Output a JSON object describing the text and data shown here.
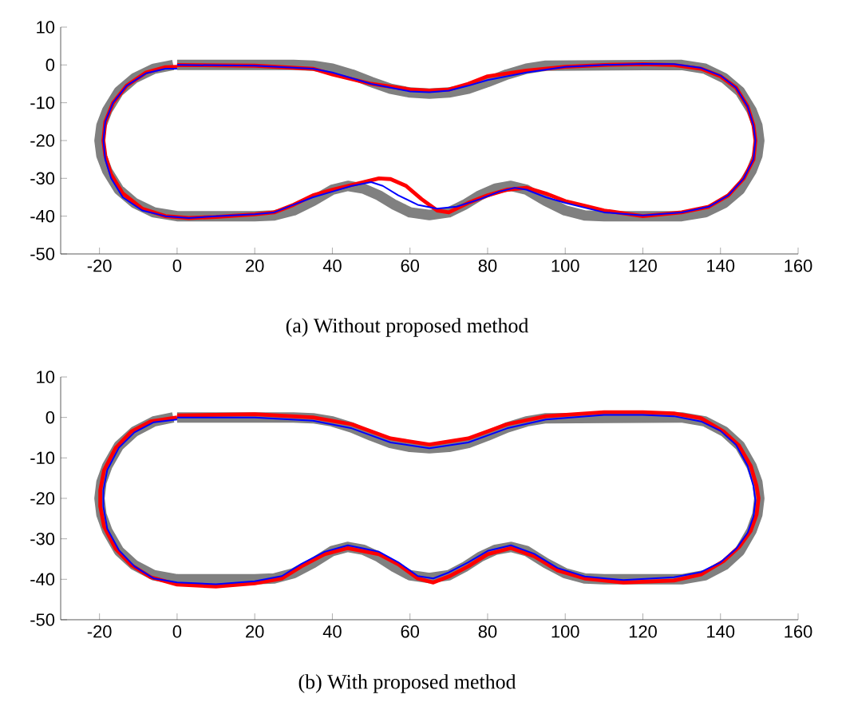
{
  "chart_data": [
    {
      "type": "line",
      "title": "(a) Without proposed method",
      "xlim": [
        -30,
        160
      ],
      "ylim": [
        -50,
        10
      ],
      "xticks": [
        -20,
        0,
        20,
        40,
        60,
        80,
        100,
        120,
        140,
        160
      ],
      "yticks": [
        -50,
        -40,
        -30,
        -20,
        -10,
        0,
        10
      ],
      "line_style": "solid",
      "series": [
        {
          "color": "#808080",
          "x": [
            0,
            30,
            35,
            40,
            45,
            50,
            55,
            60,
            65,
            70,
            75,
            80,
            85,
            90,
            95,
            130,
            136,
            141,
            145,
            148,
            149.5,
            150,
            149.5,
            148,
            145,
            141,
            136,
            130,
            120,
            110,
            105,
            100,
            95,
            90,
            86,
            82,
            78,
            74,
            70,
            65,
            60,
            56,
            52,
            48,
            44,
            40,
            35,
            30,
            25,
            20,
            10,
            0,
            -6,
            -11,
            -15,
            -18,
            -19.5,
            -20,
            -19.5,
            -18,
            -15,
            -11,
            -6,
            -1
          ],
          "values": [
            0,
            0,
            -0.2,
            -1,
            -2.5,
            -4.5,
            -6.3,
            -7.3,
            -7.6,
            -7.3,
            -6.3,
            -4.5,
            -2.5,
            -1,
            -0.2,
            0,
            -1,
            -3.5,
            -7,
            -12,
            -16,
            -20,
            -24,
            -28,
            -33,
            -36.5,
            -39,
            -40,
            -40,
            -40,
            -39.8,
            -38.5,
            -36,
            -33,
            -32,
            -32.7,
            -34.5,
            -37,
            -39,
            -39.7,
            -39,
            -37,
            -34.5,
            -32.7,
            -32,
            -33,
            -36,
            -38.5,
            -39.8,
            -40,
            -40,
            -40,
            -39,
            -36.5,
            -33,
            -28,
            -24,
            -20,
            -16,
            -12,
            -7,
            -3.5,
            -1,
            0
          ]
        },
        {
          "color": "#ff0000",
          "x": [
            0,
            20,
            35,
            40,
            50,
            60,
            65,
            70,
            75,
            80,
            90,
            100,
            110,
            120,
            128,
            135,
            140,
            144,
            147,
            148.5,
            149,
            148.5,
            146,
            142,
            137,
            130,
            120,
            110,
            100,
            95,
            90,
            85,
            80,
            75,
            70,
            67,
            63,
            59,
            55,
            52,
            48,
            44,
            40,
            35,
            30,
            25,
            20,
            10,
            3,
            -3,
            -9,
            -14,
            -17,
            -18.5,
            -19,
            -18.5,
            -16.5,
            -13,
            -8,
            -3,
            0
          ],
          "values": [
            0,
            -0.2,
            -1,
            -2.5,
            -5,
            -6.5,
            -6.8,
            -6.5,
            -5,
            -3,
            -1.5,
            -0.5,
            0,
            0.2,
            0,
            -1,
            -3,
            -6,
            -11,
            -16,
            -20,
            -25,
            -30,
            -34.5,
            -37.5,
            -39,
            -40,
            -38.5,
            -36,
            -34,
            -32.5,
            -33,
            -34.5,
            -36.5,
            -39,
            -38.5,
            -35.5,
            -32,
            -30.2,
            -30,
            -31,
            -32,
            -33,
            -34.5,
            -37,
            -39,
            -39.5,
            -40.2,
            -40.5,
            -40,
            -38,
            -34,
            -29,
            -24,
            -20,
            -15,
            -10,
            -5.5,
            -2,
            -0.6,
            -0.5
          ]
        },
        {
          "color": "#0000ff",
          "x": [
            0,
            20,
            35,
            40,
            50,
            60,
            65,
            70,
            75,
            80,
            90,
            100,
            110,
            120,
            128,
            135,
            140,
            144,
            147,
            148.5,
            149,
            148.5,
            146,
            142,
            137,
            130,
            120,
            110,
            100,
            95,
            90,
            87,
            83,
            78,
            72,
            67,
            62,
            57,
            53,
            50,
            45,
            40,
            35,
            30,
            25,
            20,
            10,
            3,
            -3,
            -9,
            -14,
            -17,
            -18.5,
            -19,
            -18.5,
            -16.5,
            -13,
            -8,
            -3,
            0
          ],
          "values": [
            0,
            -0.2,
            -1,
            -2,
            -5,
            -7,
            -7.2,
            -6.8,
            -5.5,
            -4,
            -2,
            -0.5,
            0,
            0.3,
            0.2,
            -0.8,
            -2.8,
            -6,
            -11,
            -16,
            -20,
            -25,
            -30,
            -34.5,
            -37.5,
            -39,
            -39.8,
            -39,
            -36.5,
            -35,
            -33,
            -32.5,
            -33.5,
            -35.5,
            -37.5,
            -38,
            -37,
            -34.5,
            -32,
            -31,
            -32,
            -33.5,
            -35,
            -37,
            -39,
            -39.5,
            -40,
            -40.5,
            -40,
            -38.5,
            -35,
            -30,
            -25,
            -20,
            -15,
            -10,
            -5.5,
            -2.2,
            -1,
            -1
          ]
        }
      ]
    },
    {
      "type": "line",
      "title": "(b) With proposed method",
      "xlim": [
        -30,
        160
      ],
      "ylim": [
        -50,
        10
      ],
      "xticks": [
        -20,
        0,
        20,
        40,
        60,
        80,
        100,
        120,
        140,
        160
      ],
      "yticks": [
        -50,
        -40,
        -30,
        -20,
        -10,
        0,
        10
      ],
      "line_style": "solid",
      "series": [
        {
          "color": "#808080",
          "x": [
            0,
            30,
            35,
            40,
            45,
            50,
            55,
            60,
            65,
            70,
            75,
            80,
            85,
            90,
            95,
            130,
            136,
            141,
            145,
            148,
            149.5,
            150,
            149.5,
            148,
            145,
            141,
            136,
            130,
            120,
            110,
            105,
            100,
            95,
            90,
            86,
            82,
            78,
            74,
            70,
            65,
            60,
            56,
            52,
            48,
            44,
            40,
            35,
            30,
            25,
            20,
            10,
            0,
            -6,
            -11,
            -15,
            -18,
            -19.5,
            -20,
            -19.5,
            -18,
            -15,
            -11,
            -6,
            -1
          ],
          "values": [
            0,
            0,
            -0.2,
            -1,
            -2.5,
            -4.5,
            -6.3,
            -7.3,
            -7.6,
            -7.3,
            -6.3,
            -4.5,
            -2.5,
            -1,
            -0.2,
            0,
            -1,
            -3.5,
            -7,
            -12,
            -16,
            -20,
            -24,
            -28,
            -33,
            -36.5,
            -39,
            -40,
            -40,
            -40,
            -39.8,
            -38.5,
            -36,
            -33,
            -32,
            -32.7,
            -34.5,
            -37,
            -39,
            -39.7,
            -39,
            -37,
            -34.5,
            -32.7,
            -32,
            -33,
            -36,
            -38.5,
            -39.8,
            -40,
            -40,
            -40,
            -39,
            -36.5,
            -33,
            -28,
            -24,
            -20,
            -16,
            -12,
            -7,
            -3.5,
            -1,
            0
          ]
        },
        {
          "color": "#ff0000",
          "x": [
            0,
            20,
            35,
            45,
            55,
            65,
            75,
            85,
            95,
            110,
            120,
            128,
            135,
            140.8,
            144.8,
            147.8,
            149.3,
            149.8,
            149.3,
            147.8,
            144.8,
            140.8,
            135,
            128,
            115,
            105,
            98,
            92,
            86,
            80,
            75,
            70,
            66,
            62,
            57,
            52,
            44,
            38,
            32,
            27,
            20,
            10,
            0,
            -6.8,
            -11.8,
            -15.8,
            -18.8,
            -19.8,
            -19.8,
            -18.8,
            -15.8,
            -11.8,
            -6.8,
            0
          ],
          "values": [
            0.5,
            0.8,
            0,
            -1.7,
            -5.2,
            -6.7,
            -5.2,
            -1.7,
            0.3,
            1.3,
            1.3,
            1,
            -0.2,
            -3.5,
            -7,
            -12,
            -17,
            -20,
            -24,
            -28,
            -32,
            -35.5,
            -38.8,
            -40.3,
            -40.8,
            -39.8,
            -37.8,
            -34.3,
            -32.3,
            -33.8,
            -36.8,
            -39.3,
            -40.8,
            -39.8,
            -36.3,
            -33.8,
            -32.3,
            -33.8,
            -36.8,
            -39.8,
            -41,
            -41.8,
            -41.3,
            -39.5,
            -36.5,
            -32.5,
            -27,
            -22,
            -18,
            -13,
            -7.5,
            -3.5,
            -1,
            0
          ]
        },
        {
          "color": "#0000ff",
          "x": [
            0,
            20,
            35,
            45,
            55,
            65,
            75,
            85,
            95,
            110,
            120,
            128,
            135,
            140,
            144,
            147,
            148.5,
            149,
            148.5,
            147,
            144,
            140,
            135,
            128,
            115,
            105,
            98,
            92,
            86,
            80,
            75,
            70,
            66,
            62,
            57,
            52,
            44,
            38,
            32,
            27,
            20,
            10,
            0,
            -6,
            -11,
            -15,
            -18,
            -19,
            -19,
            -18,
            -15,
            -11,
            -6,
            0
          ],
          "values": [
            0,
            0,
            -0.8,
            -2.7,
            -6.2,
            -7.6,
            -6.2,
            -2.7,
            -0.5,
            0.6,
            0.6,
            0.3,
            -1,
            -3.3,
            -6.8,
            -12,
            -17,
            -20.5,
            -24.5,
            -28.5,
            -32.5,
            -35.8,
            -38.2,
            -39.5,
            -40.2,
            -39.3,
            -37.2,
            -33.7,
            -31.6,
            -33,
            -35.8,
            -38.3,
            -39.8,
            -39.2,
            -35.8,
            -33.2,
            -31.6,
            -33.2,
            -36.2,
            -39.2,
            -40.5,
            -41.2,
            -40.8,
            -39.8,
            -36.8,
            -32.8,
            -27.5,
            -22,
            -18,
            -13,
            -7.5,
            -3.7,
            -1.2,
            -0.5
          ]
        }
      ]
    }
  ]
}
